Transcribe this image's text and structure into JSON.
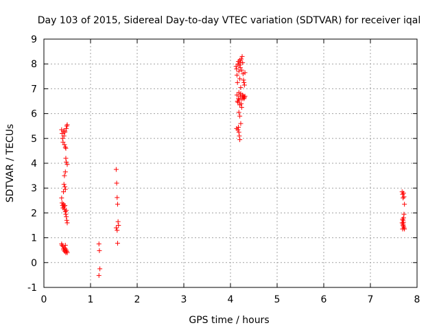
{
  "chart_data": {
    "type": "scatter",
    "title": "Day 103 of 2015, Sidereal Day-to-day VTEC variation (SDTVAR) for receiver iqal",
    "xlabel": "GPS time / hours",
    "ylabel": "SDTVAR / TECUs",
    "xlim": [
      0,
      8
    ],
    "ylim": [
      -1,
      9
    ],
    "xticks": [
      "0",
      "1",
      "2",
      "3",
      "4",
      "5",
      "6",
      "7",
      "8"
    ],
    "yticks": [
      "-1",
      "0",
      "1",
      "2",
      "3",
      "4",
      "5",
      "6",
      "7",
      "8",
      "9"
    ],
    "grid": true,
    "marker": "+",
    "color": "#ff0000",
    "series": [
      {
        "values": [
          [
            0.38,
            5.35
          ],
          [
            0.39,
            5.2
          ],
          [
            0.4,
            5.0
          ],
          [
            0.41,
            4.85
          ],
          [
            0.42,
            5.3
          ],
          [
            0.43,
            5.1
          ],
          [
            0.44,
            4.75
          ],
          [
            0.45,
            5.25
          ],
          [
            0.46,
            4.65
          ],
          [
            0.47,
            4.6
          ],
          [
            0.48,
            5.4
          ],
          [
            0.49,
            5.5
          ],
          [
            0.5,
            5.55
          ],
          [
            0.45,
            5.3
          ],
          [
            0.47,
            4.2
          ],
          [
            0.48,
            4.05
          ],
          [
            0.5,
            3.95
          ],
          [
            0.46,
            3.65
          ],
          [
            0.44,
            3.5
          ],
          [
            0.43,
            3.15
          ],
          [
            0.45,
            3.05
          ],
          [
            0.46,
            2.95
          ],
          [
            0.42,
            2.85
          ],
          [
            0.38,
            2.6
          ],
          [
            0.39,
            2.4
          ],
          [
            0.4,
            2.3
          ],
          [
            0.41,
            2.2
          ],
          [
            0.42,
            2.35
          ],
          [
            0.43,
            2.25
          ],
          [
            0.44,
            2.15
          ],
          [
            0.45,
            2.3
          ],
          [
            0.46,
            2.05
          ],
          [
            0.47,
            1.95
          ],
          [
            0.48,
            1.85
          ],
          [
            0.49,
            1.7
          ],
          [
            0.5,
            1.6
          ],
          [
            0.48,
            2.1
          ],
          [
            0.38,
            0.75
          ],
          [
            0.39,
            0.7
          ],
          [
            0.41,
            0.65
          ],
          [
            0.42,
            0.55
          ],
          [
            0.43,
            0.5
          ],
          [
            0.44,
            0.6
          ],
          [
            0.45,
            0.45
          ],
          [
            0.46,
            0.55
          ],
          [
            0.47,
            0.4
          ],
          [
            0.48,
            0.5
          ],
          [
            0.49,
            0.45
          ],
          [
            0.5,
            0.4
          ],
          [
            0.46,
            0.7
          ],
          [
            1.18,
            0.75
          ],
          [
            1.19,
            0.48
          ],
          [
            1.2,
            -0.25
          ],
          [
            1.18,
            -0.52
          ],
          [
            1.55,
            3.75
          ],
          [
            1.56,
            3.2
          ],
          [
            1.57,
            2.62
          ],
          [
            1.58,
            2.35
          ],
          [
            1.59,
            1.65
          ],
          [
            1.6,
            1.5
          ],
          [
            1.55,
            1.4
          ],
          [
            1.57,
            1.3
          ],
          [
            1.58,
            0.78
          ],
          [
            4.12,
            7.9
          ],
          [
            4.13,
            7.8
          ],
          [
            4.14,
            7.55
          ],
          [
            4.15,
            7.25
          ],
          [
            4.16,
            8.0
          ],
          [
            4.17,
            8.1
          ],
          [
            4.18,
            7.7
          ],
          [
            4.19,
            7.95
          ],
          [
            4.2,
            8.15
          ],
          [
            4.21,
            7.85
          ],
          [
            4.22,
            8.05
          ],
          [
            4.23,
            8.2
          ],
          [
            4.24,
            7.75
          ],
          [
            4.25,
            8.3
          ],
          [
            4.26,
            8.05
          ],
          [
            4.27,
            7.6
          ],
          [
            4.28,
            7.35
          ],
          [
            4.29,
            7.25
          ],
          [
            4.3,
            7.15
          ],
          [
            4.31,
            7.65
          ],
          [
            4.2,
            7.4
          ],
          [
            4.22,
            7.05
          ],
          [
            4.14,
            6.75
          ],
          [
            4.15,
            6.5
          ],
          [
            4.16,
            6.45
          ],
          [
            4.17,
            6.6
          ],
          [
            4.18,
            6.85
          ],
          [
            4.19,
            6.55
          ],
          [
            4.2,
            6.35
          ],
          [
            4.21,
            6.7
          ],
          [
            4.22,
            6.8
          ],
          [
            4.23,
            6.4
          ],
          [
            4.24,
            6.25
          ],
          [
            4.25,
            6.6
          ],
          [
            4.26,
            6.75
          ],
          [
            4.27,
            6.65
          ],
          [
            4.28,
            6.7
          ],
          [
            4.29,
            6.6
          ],
          [
            4.3,
            6.65
          ],
          [
            4.31,
            6.7
          ],
          [
            4.18,
            6.05
          ],
          [
            4.2,
            5.9
          ],
          [
            4.22,
            5.6
          ],
          [
            4.17,
            5.45
          ],
          [
            4.16,
            5.35
          ],
          [
            4.18,
            5.25
          ],
          [
            4.19,
            5.1
          ],
          [
            4.2,
            4.95
          ],
          [
            4.13,
            5.4
          ],
          [
            7.68,
            2.85
          ],
          [
            7.69,
            2.75
          ],
          [
            7.7,
            2.6
          ],
          [
            7.71,
            2.8
          ],
          [
            7.72,
            2.65
          ],
          [
            7.73,
            2.35
          ],
          [
            7.72,
            1.95
          ],
          [
            7.71,
            1.8
          ],
          [
            7.7,
            1.7
          ],
          [
            7.69,
            1.75
          ],
          [
            7.68,
            1.6
          ],
          [
            7.7,
            1.5
          ],
          [
            7.71,
            1.45
          ],
          [
            7.72,
            1.4
          ],
          [
            7.73,
            1.35
          ],
          [
            7.69,
            1.35
          ],
          [
            7.7,
            1.55
          ],
          [
            7.71,
            1.62
          ]
        ]
      }
    ]
  }
}
